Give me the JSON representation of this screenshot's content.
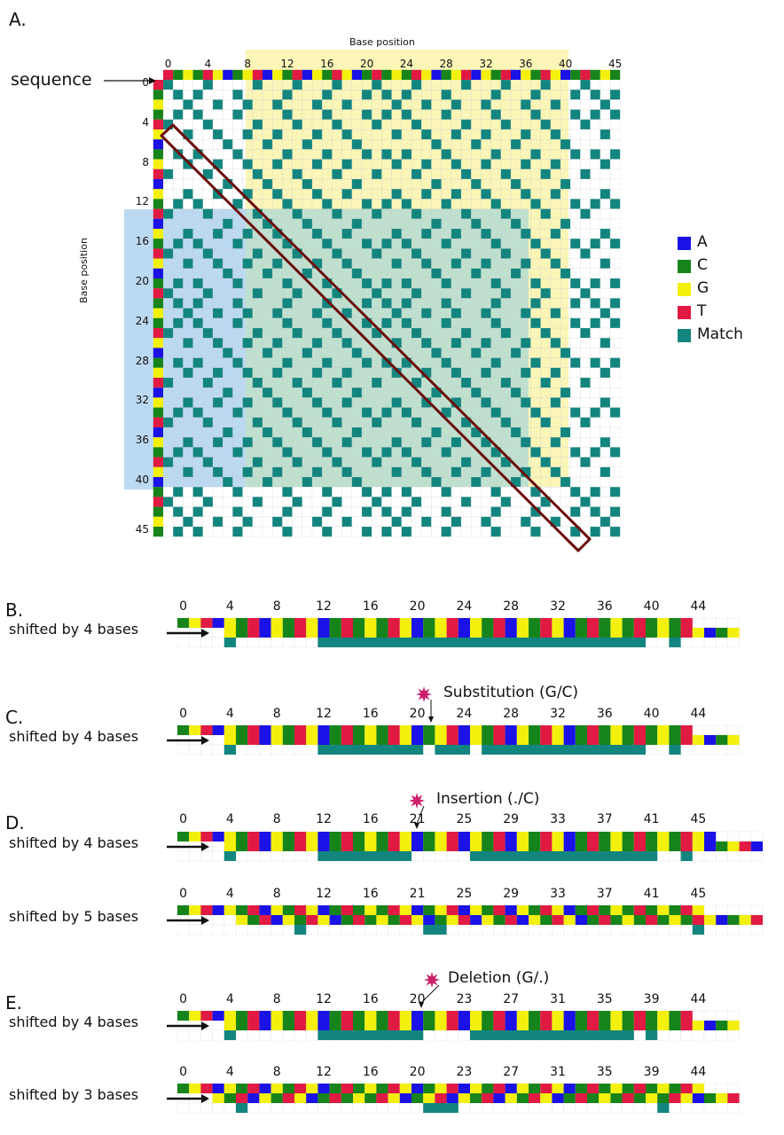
{
  "panel_a": {
    "letter": "A.",
    "axis_title_top": "Base position",
    "axis_title_left": "Base position",
    "sequence_label": "sequence",
    "top_ticks": [
      "0",
      "4",
      "8",
      "12",
      "16",
      "20",
      "24",
      "28",
      "32",
      "36",
      "40",
      "45"
    ],
    "left_ticks": [
      "0",
      "4",
      "8",
      "12",
      "16",
      "20",
      "24",
      "28",
      "32",
      "36",
      "40",
      "45"
    ]
  },
  "legend": [
    {
      "label": "A",
      "color": "#1a12e6"
    },
    {
      "label": "C",
      "color": "#16841a"
    },
    {
      "label": "G",
      "color": "#f4f00e"
    },
    {
      "label": "T",
      "color": "#e11a43"
    },
    {
      "label": "Match",
      "color": "#13857f"
    }
  ],
  "colors": {
    "A": "#1a12e6",
    "C": "#16841a",
    "G": "#f4f00e",
    "T": "#e11a43",
    "match": "#13857f",
    "yellow_region": "#fbf6b8",
    "blue_region": "#bcd9f2",
    "green_region": "#bfe0cf",
    "diag_box": "#6b0d0d",
    "star": "#cc1f6b"
  },
  "panels": [
    {
      "letter": "B.",
      "rows": [
        {
          "label": "shifted by 4 bases",
          "ticks": [
            "0",
            "4",
            "8",
            "12",
            "16",
            "20",
            "24",
            "28",
            "32",
            "36",
            "40",
            "44"
          ]
        }
      ]
    },
    {
      "letter": "C.",
      "annotation": "Substitution (G/C)",
      "rows": [
        {
          "label": "shifted by 4 bases",
          "ticks": [
            "0",
            "4",
            "8",
            "12",
            "16",
            "20",
            "24",
            "28",
            "32",
            "36",
            "40",
            "44"
          ]
        }
      ]
    },
    {
      "letter": "D.",
      "annotation": "Insertion (./C)",
      "rows": [
        {
          "label": "shifted by 4 bases",
          "ticks": [
            "0",
            "4",
            "8",
            "12",
            "16",
            "21",
            "25",
            "29",
            "33",
            "37",
            "41",
            "45"
          ]
        },
        {
          "label": "shifted by 5 bases",
          "ticks": [
            "0",
            "4",
            "8",
            "12",
            "16",
            "21",
            "25",
            "29",
            "33",
            "37",
            "41",
            "45"
          ]
        }
      ]
    },
    {
      "letter": "E.",
      "annotation": "Deletion (G/.)",
      "rows": [
        {
          "label": "shifted by 4 bases",
          "ticks": [
            "0",
            "4",
            "8",
            "12",
            "16",
            "20",
            "23",
            "27",
            "31",
            "35",
            "39",
            "44"
          ]
        },
        {
          "label": "shifted by 3 bases",
          "ticks": [
            "0",
            "4",
            "8",
            "12",
            "16",
            "20",
            "23",
            "27",
            "31",
            "35",
            "39",
            "44"
          ]
        }
      ]
    }
  ]
}
